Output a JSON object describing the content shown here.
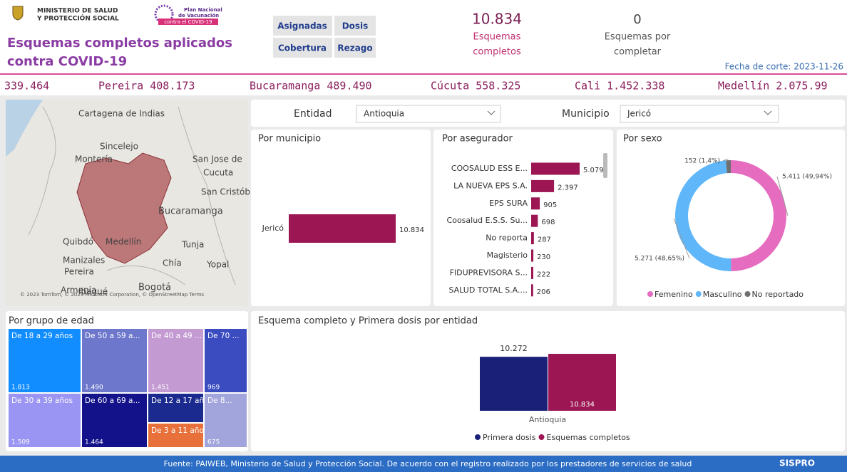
{
  "header": {
    "ministry_lines": [
      "MINISTERIO DE SALUD",
      "Y PROTECCIÓN SOCIAL"
    ],
    "plan_lines": [
      "Plan Nacional",
      "de Vacunación",
      "contra el COVID-19"
    ],
    "title_lines": [
      "Esquemas completos aplicados",
      "contra COVID-19"
    ],
    "buttons": [
      "Asignadas",
      "Dosis",
      "Cobertura",
      "Rezago"
    ],
    "kpis": [
      {
        "value": "10.834",
        "label_lines": [
          "Esquemas",
          "completos"
        ]
      },
      {
        "value": "0",
        "label_lines": [
          "Esquemas por",
          "completar"
        ]
      }
    ],
    "cutoff": "Fecha de corte: 2023-11-26"
  },
  "ticker": [
    "339.464",
    "Pereira 408.173",
    "Bucaramanga 489.490",
    "Cúcuta 558.325",
    "Cali 1.452.338",
    "Medellín 2.075.99"
  ],
  "map": {
    "labels": [
      "Cartagena de Indias",
      "Sincelejo",
      "Montería",
      "San Jose de",
      "Cucuta",
      "San Cristób",
      "Bucaramanga",
      "Quibdó",
      "Medellín",
      "Tunja",
      "Manizales",
      "Chía",
      "Yopal",
      "Pereira",
      "Armenia",
      "Ibagué",
      "Bogotá"
    ],
    "attribution": "© 2023 TomTom, © 2023 Microsoft Corporation, © OpenStreetMap  Terms"
  },
  "filters": {
    "entity_label": "Entidad",
    "entity_value": "Antioquia",
    "municipality_label": "Municipio",
    "municipality_value": "Jericó"
  },
  "by_municipality": {
    "type": "bar",
    "title": "Por municipio",
    "categories": [
      "Jericó"
    ],
    "values": [
      10834
    ],
    "value_labels": [
      "10.834"
    ],
    "color": "#9b1652"
  },
  "by_insurer": {
    "type": "bar",
    "title": "Por asegurador",
    "categories": [
      "COOSALUD ESS E...",
      "LA NUEVA EPS S.A.",
      "EPS SURA",
      "Coosalud E.S.S. Su...",
      "No reporta",
      "Magisterio",
      "FIDUPREVISORA S...",
      "SALUD TOTAL S.A...."
    ],
    "values": [
      5079,
      2397,
      905,
      698,
      287,
      230,
      222,
      206
    ],
    "value_labels": [
      "5.079",
      "2.397",
      "905",
      "698",
      "287",
      "230",
      "222",
      "206"
    ],
    "color": "#9b1652"
  },
  "by_sex": {
    "type": "pie",
    "title": "Por sexo",
    "categories": [
      "Femenino",
      "Masculino",
      "No reportado"
    ],
    "values": [
      5411,
      5271,
      152
    ],
    "value_labels": [
      "5.411 (49,94%)",
      "5.271 (48,65%)",
      "152 (1,4%)"
    ],
    "colors": [
      "#e66cbf",
      "#5fb6f8",
      "#6f6f6f"
    ]
  },
  "by_age": {
    "type": "treemap",
    "title": "Por grupo de edad",
    "categories": [
      "De 18 a 29 años",
      "De 30 a 39 años",
      "De 50 a 59 a...",
      "De 60 a 69 a...",
      "De 40 a 49 ...",
      "De 12 a 17 añ...",
      "De 3 a 11 años",
      "De 70 ...",
      "De 8..."
    ],
    "values": [
      1813,
      1509,
      1490,
      1464,
      1451,
      717,
      600,
      969,
      675
    ],
    "value_labels": [
      "1.813",
      "1.509",
      "1.490",
      "1.464",
      "1.451",
      null,
      null,
      "969",
      "675"
    ],
    "colors": [
      "#118dff",
      "#9a95f2",
      "#6d78cc",
      "#14128a",
      "#c39ad2",
      "#1b2a8e",
      "#e8703a",
      "#3a4cbf",
      "#a2a5db"
    ]
  },
  "by_entity": {
    "type": "bar",
    "title": "Esquema completo y Primera dosis por entidad",
    "categories": [
      "Antioquia"
    ],
    "series": [
      {
        "name": "Primera dosis",
        "color": "#1a1f78",
        "values": [
          10272
        ],
        "value_labels": [
          "10.272"
        ]
      },
      {
        "name": "Esquemas completos",
        "color": "#9b1652",
        "values": [
          10834
        ],
        "value_labels": [
          "10.834"
        ]
      }
    ]
  },
  "footer": {
    "source": "Fuente: PAIWEB, Ministerio de Salud y Protección Social. De acuerdo con el registro realizado por los prestadores de servicios de salud",
    "logo": "SISPRO"
  }
}
